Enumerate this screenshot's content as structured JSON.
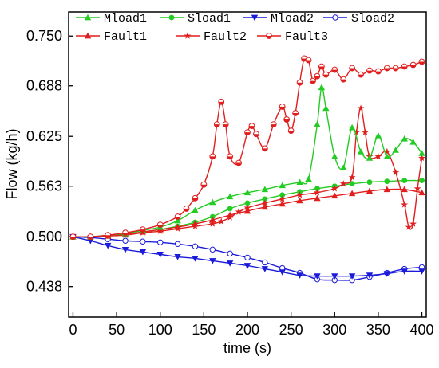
{
  "chart_data": {
    "type": "line",
    "xlabel": "time (s)",
    "ylabel": "Flow (kg/h)",
    "xlim": [
      -5,
      405
    ],
    "ylim": [
      0.4,
      0.78
    ],
    "xticks": [
      "0",
      "50",
      "100",
      "150",
      "200",
      "250",
      "300",
      "350",
      "400"
    ],
    "yticks": [
      "0.438",
      "0.500",
      "0.563",
      "0.625",
      "0.688",
      "0.750"
    ],
    "grid": false,
    "legend_position": "top",
    "series": [
      {
        "name": "Mload1",
        "color": "#22cc22",
        "marker": "triangle-up",
        "x": [
          0,
          20,
          40,
          60,
          80,
          100,
          120,
          140,
          160,
          180,
          200,
          220,
          240,
          260,
          270,
          280,
          285,
          290,
          300,
          310,
          320,
          330,
          340,
          350,
          360,
          370,
          380,
          390,
          400
        ],
        "y": [
          0.5,
          0.5,
          0.502,
          0.504,
          0.508,
          0.512,
          0.52,
          0.533,
          0.543,
          0.55,
          0.555,
          0.559,
          0.564,
          0.568,
          0.572,
          0.64,
          0.686,
          0.66,
          0.6,
          0.586,
          0.636,
          0.606,
          0.598,
          0.626,
          0.6,
          0.608,
          0.622,
          0.618,
          0.604
        ]
      },
      {
        "name": "Sload1",
        "color": "#22cc22",
        "marker": "circle",
        "x": [
          0,
          20,
          40,
          60,
          80,
          100,
          120,
          140,
          160,
          180,
          200,
          220,
          240,
          260,
          280,
          300,
          320,
          340,
          360,
          380,
          400
        ],
        "y": [
          0.5,
          0.5,
          0.501,
          0.503,
          0.506,
          0.509,
          0.513,
          0.518,
          0.525,
          0.535,
          0.542,
          0.547,
          0.552,
          0.556,
          0.56,
          0.563,
          0.566,
          0.568,
          0.569,
          0.57,
          0.57
        ]
      },
      {
        "name": "Mload2",
        "color": "#1a1adb",
        "marker": "triangle-down",
        "x": [
          0,
          20,
          40,
          60,
          80,
          100,
          120,
          140,
          160,
          180,
          200,
          220,
          240,
          260,
          280,
          300,
          320,
          340,
          360,
          380,
          400
        ],
        "y": [
          0.5,
          0.495,
          0.489,
          0.484,
          0.481,
          0.478,
          0.475,
          0.473,
          0.47,
          0.467,
          0.464,
          0.46,
          0.456,
          0.452,
          0.451,
          0.451,
          0.451,
          0.452,
          0.454,
          0.457,
          0.457
        ]
      },
      {
        "name": "Sload2",
        "color": "#1a1adb",
        "marker": "circle-open",
        "x": [
          0,
          20,
          40,
          60,
          80,
          100,
          120,
          140,
          160,
          180,
          200,
          220,
          240,
          260,
          280,
          300,
          320,
          340,
          360,
          380,
          400
        ],
        "y": [
          0.5,
          0.499,
          0.497,
          0.495,
          0.494,
          0.493,
          0.491,
          0.488,
          0.484,
          0.479,
          0.474,
          0.468,
          0.461,
          0.455,
          0.447,
          0.446,
          0.446,
          0.45,
          0.455,
          0.46,
          0.462
        ]
      },
      {
        "name": "Fault1",
        "color": "#e01e1e",
        "marker": "triangle-up",
        "x": [
          0,
          20,
          40,
          60,
          80,
          100,
          120,
          140,
          160,
          180,
          200,
          220,
          240,
          260,
          280,
          300,
          320,
          340,
          360,
          380,
          400
        ],
        "y": [
          0.5,
          0.5,
          0.501,
          0.503,
          0.506,
          0.509,
          0.512,
          0.516,
          0.521,
          0.527,
          0.532,
          0.537,
          0.541,
          0.545,
          0.548,
          0.551,
          0.554,
          0.557,
          0.559,
          0.559,
          0.555
        ]
      },
      {
        "name": "Fault2",
        "color": "#e01e1e",
        "marker": "star",
        "x": [
          0,
          20,
          40,
          60,
          80,
          100,
          120,
          140,
          160,
          170,
          180,
          190,
          200,
          220,
          240,
          260,
          280,
          300,
          310,
          320,
          325,
          330,
          335,
          340,
          350,
          360,
          370,
          380,
          385,
          390,
          395,
          400
        ],
        "y": [
          0.5,
          0.5,
          0.501,
          0.502,
          0.505,
          0.507,
          0.51,
          0.513,
          0.516,
          0.519,
          0.524,
          0.531,
          0.536,
          0.542,
          0.547,
          0.552,
          0.555,
          0.56,
          0.566,
          0.574,
          0.63,
          0.66,
          0.63,
          0.6,
          0.6,
          0.606,
          0.58,
          0.54,
          0.512,
          0.516,
          0.56,
          0.598
        ]
      },
      {
        "name": "Fault3",
        "color": "#e01e1e",
        "marker": "circle-half",
        "x": [
          0,
          20,
          40,
          60,
          80,
          100,
          120,
          130,
          140,
          150,
          160,
          165,
          170,
          175,
          180,
          190,
          200,
          205,
          210,
          220,
          230,
          240,
          245,
          250,
          255,
          260,
          265,
          270,
          275,
          280,
          285,
          290,
          300,
          310,
          320,
          330,
          340,
          350,
          360,
          370,
          380,
          390,
          400
        ],
        "y": [
          0.5,
          0.5,
          0.502,
          0.505,
          0.509,
          0.515,
          0.525,
          0.535,
          0.548,
          0.565,
          0.6,
          0.64,
          0.668,
          0.64,
          0.6,
          0.592,
          0.63,
          0.638,
          0.628,
          0.61,
          0.64,
          0.662,
          0.646,
          0.632,
          0.654,
          0.692,
          0.722,
          0.72,
          0.694,
          0.7,
          0.712,
          0.702,
          0.708,
          0.696,
          0.71,
          0.702,
          0.707,
          0.706,
          0.71,
          0.71,
          0.712,
          0.714,
          0.718
        ]
      }
    ],
    "legend": [
      [
        "Mload1",
        "Sload1",
        "Mload2",
        "Sload2"
      ],
      [
        "Fault1",
        "Fault2",
        "Fault3"
      ]
    ]
  }
}
